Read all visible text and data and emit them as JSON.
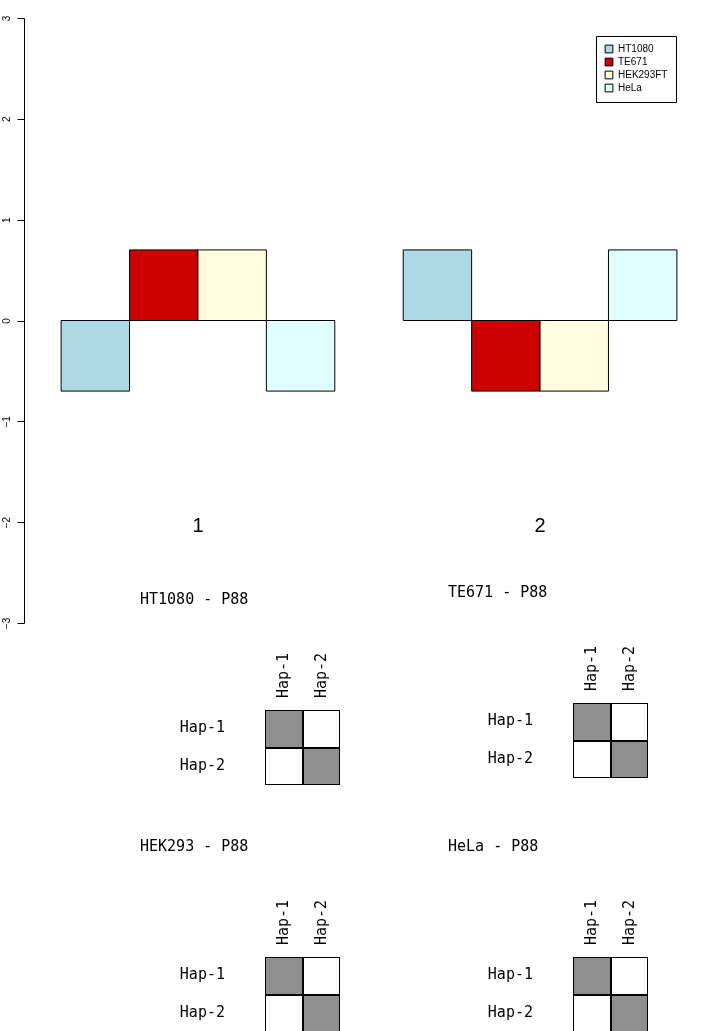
{
  "chart_data": [
    {
      "type": "bar",
      "categories": [
        "1",
        "2"
      ],
      "series": [
        {
          "name": "HT1080",
          "color": "#add8e6",
          "values": [
            -0.7,
            0.7
          ]
        },
        {
          "name": "TE671",
          "color": "#cd0000",
          "values": [
            0.7,
            -0.7
          ]
        },
        {
          "name": "HEK293FT",
          "color": "#fffde0",
          "values": [
            0.7,
            -0.7
          ]
        },
        {
          "name": "HeLa",
          "color": "#e0ffff",
          "values": [
            -0.7,
            0.7
          ]
        }
      ],
      "ylim": [
        -3,
        3
      ],
      "yticks": [
        -3,
        -2,
        -1,
        0,
        1,
        2,
        3
      ],
      "grid": false,
      "legend": "top right"
    },
    {
      "type": "other",
      "title": "HT1080 - P88",
      "categories": [
        "Hap-1",
        "Hap-2"
      ],
      "y_categories": [
        "Hap-1",
        "Hap-2"
      ]
    },
    {
      "type": "other",
      "title": "TE671 - P88",
      "categories": [
        "Hap-1",
        "Hap-2"
      ],
      "y_categories": [
        "Hap-1",
        "Hap-2"
      ]
    },
    {
      "type": "other",
      "title": "HEK293 - P88",
      "categories": [
        "Hap-1",
        "Hap-2"
      ],
      "y_categories": [
        "Hap-1",
        "Hap-2"
      ]
    },
    {
      "type": "other",
      "title": "HeLa - P88",
      "categories": [
        "Hap-1",
        "Hap-2"
      ],
      "y_categories": [
        "Hap-1",
        "Hap-2"
      ]
    }
  ]
}
